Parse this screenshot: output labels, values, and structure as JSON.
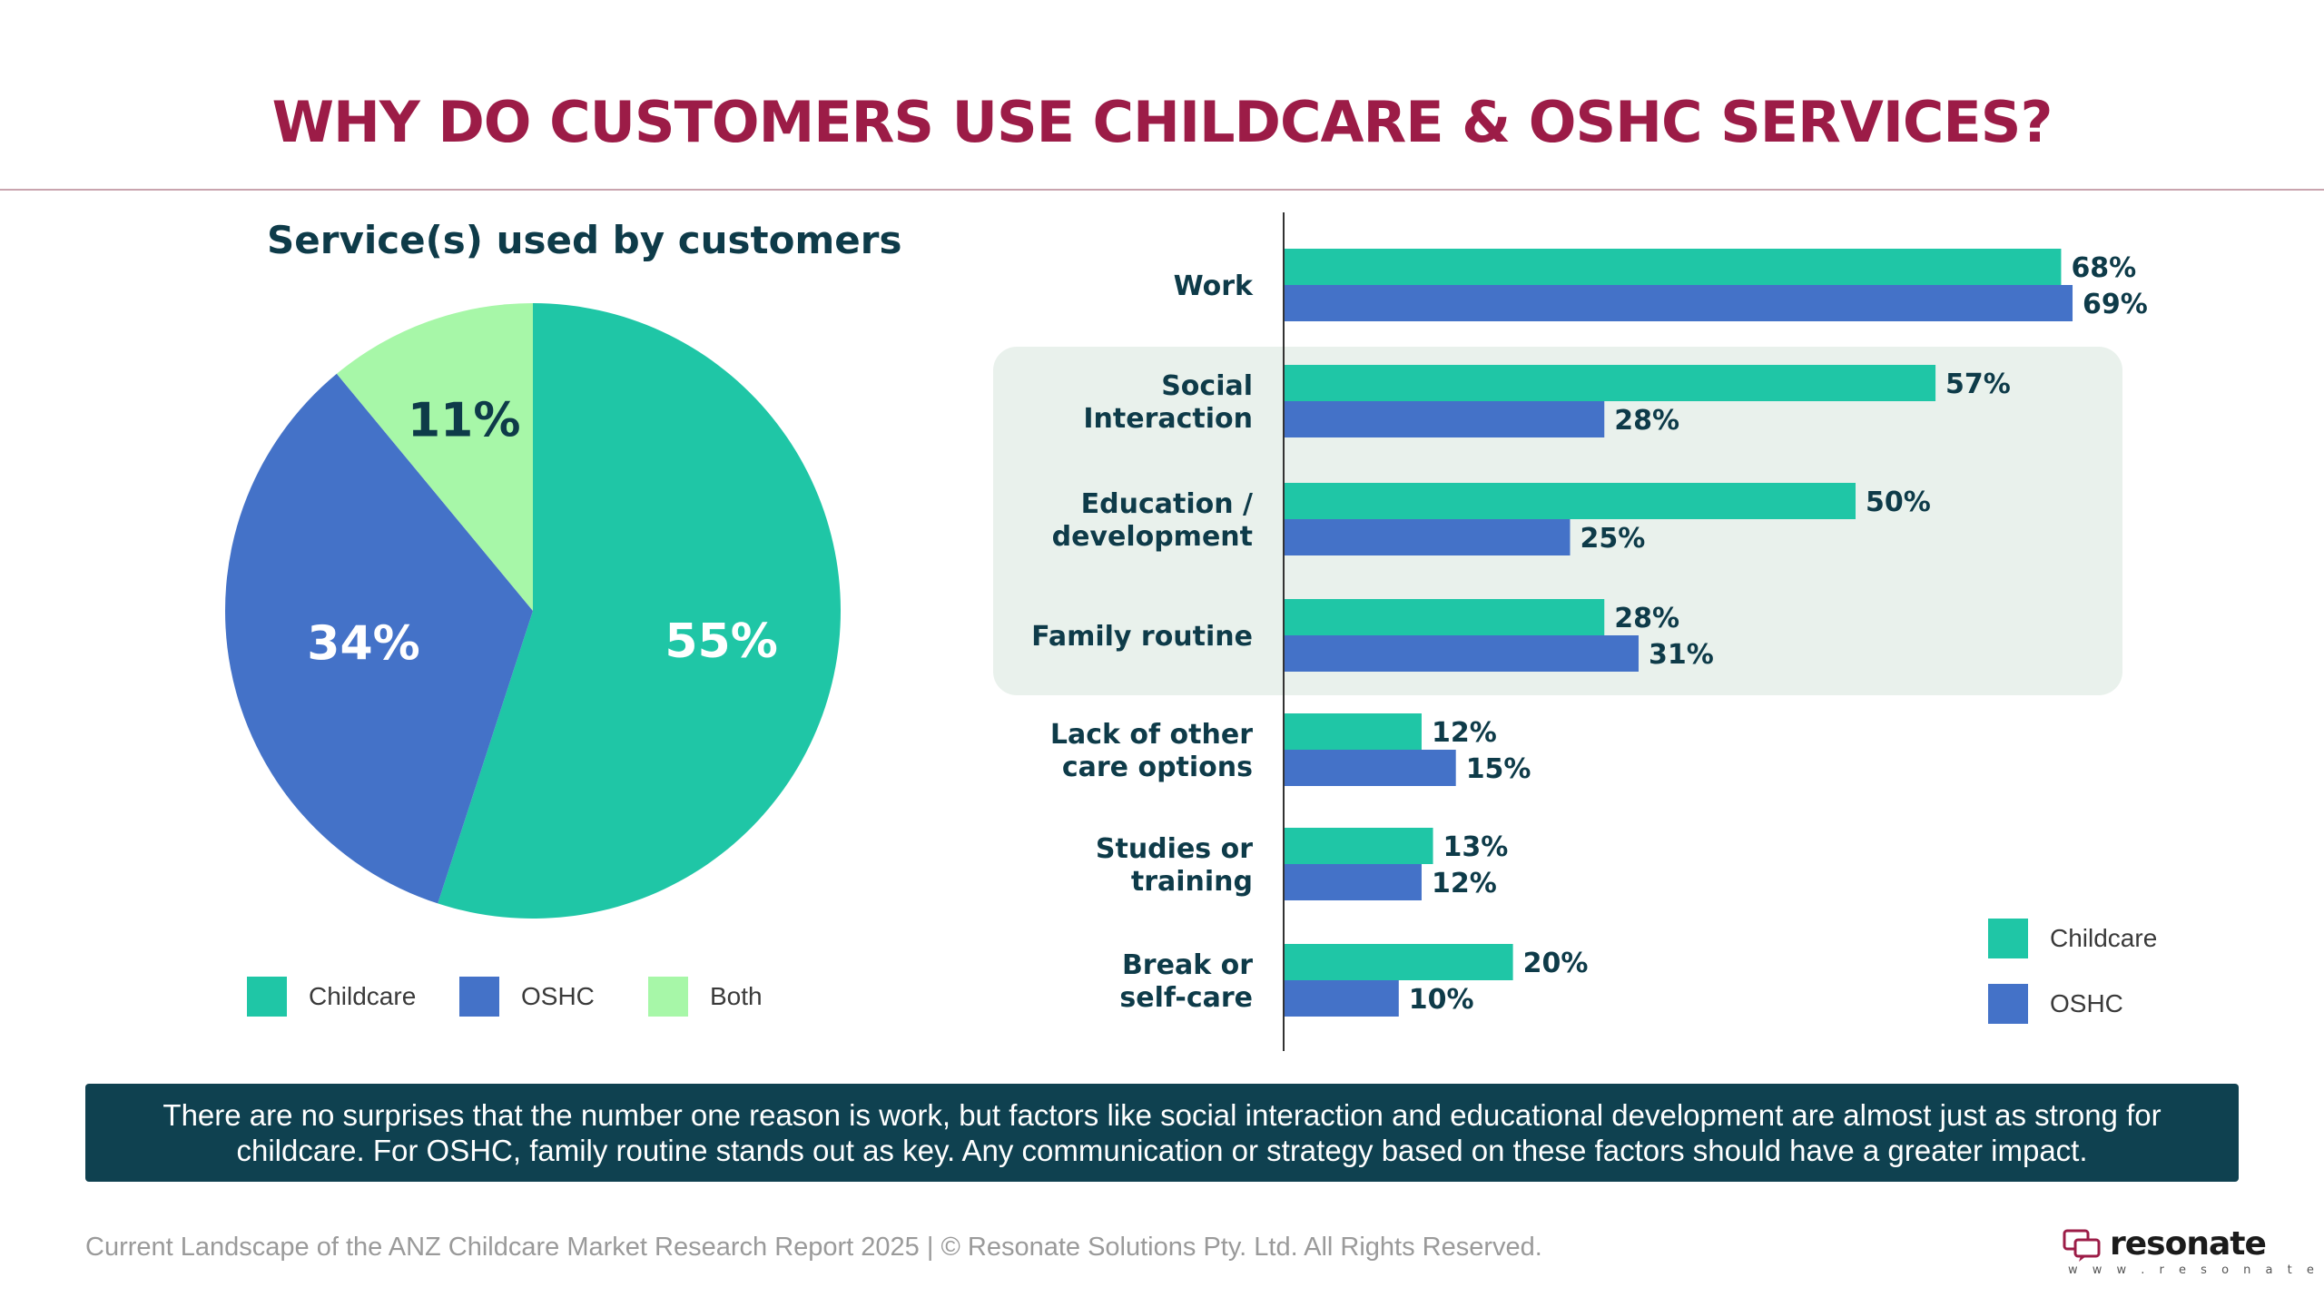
{
  "page": {
    "title": "WHY DO CUSTOMERS USE CHILDCARE & OSHC SERVICES?",
    "summary": "There are no surprises that the number one reason is work, but factors like social interaction and educational development are almost just as strong for childcare. For OSHC, family routine stands out as key. Any communication or strategy based on these factors should have a greater impact.",
    "footer": "Current Landscape of the ANZ Childcare Market Research Report 2025 | © Resonate Solutions Pty. Ltd. All Rights Reserved.",
    "logo": {
      "name": "resonate",
      "url": "w w w . r e s o n a t e . c x",
      "icon": "chat-bubbles-icon"
    }
  },
  "colors": {
    "title": "#9c1c47",
    "childcare": "#1fc6a6",
    "oshc": "#4472c8",
    "both": "#a7f7a8",
    "highlight": "#e9f1ec",
    "summary_bg": "#0f4150"
  },
  "chart_data": [
    {
      "type": "pie",
      "title": "Service(s) used by customers",
      "categories": [
        "Childcare",
        "OSHC",
        "Both"
      ],
      "values": [
        55,
        34,
        11
      ],
      "labels": [
        "55%",
        "34%",
        "11%"
      ],
      "colors": [
        "#1fc6a6",
        "#4472c8",
        "#a7f7a8"
      ],
      "legend": "bottom"
    },
    {
      "type": "bar",
      "orientation": "horizontal",
      "categories": [
        "Work",
        "Social Interaction",
        "Education / development",
        "Family routine",
        "Lack of other care options",
        "Studies or training",
        "Break or self-care"
      ],
      "category_lines": [
        [
          "Work"
        ],
        [
          "Social",
          "Interaction"
        ],
        [
          "Education /",
          "development"
        ],
        [
          "Family routine"
        ],
        [
          "Lack of other",
          "care options"
        ],
        [
          "Studies or",
          "training"
        ],
        [
          "Break or",
          "self-care"
        ]
      ],
      "series": [
        {
          "name": "Childcare",
          "values": [
            68,
            57,
            50,
            28,
            12,
            13,
            20
          ],
          "labels": [
            "68%",
            "57%",
            "50%",
            "28%",
            "12%",
            "13%",
            "20%"
          ],
          "color": "#1fc6a6"
        },
        {
          "name": "OSHC",
          "values": [
            69,
            28,
            25,
            31,
            15,
            12,
            10
          ],
          "labels": [
            "69%",
            "28%",
            "25%",
            "31%",
            "15%",
            "12%",
            "10%"
          ],
          "color": "#4472c8"
        }
      ],
      "highlighted_categories": [
        "Social Interaction",
        "Education / development",
        "Family routine"
      ],
      "legend": "bottom-right",
      "grid": false
    }
  ]
}
